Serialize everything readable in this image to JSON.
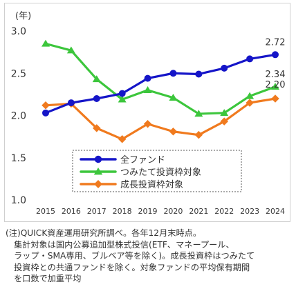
{
  "chart_data": {
    "type": "line",
    "title": "",
    "ylabel": "(年)",
    "xlabel": "",
    "ylim": [
      1.0,
      3.0
    ],
    "yticks": [
      "1.0",
      "1.5",
      "2.0",
      "2.5",
      "3.0"
    ],
    "categories": [
      "2015",
      "2016",
      "2017",
      "2018",
      "2019",
      "2020",
      "2021",
      "2022",
      "2023",
      "2024"
    ],
    "grid": false,
    "legend_position": "bottom-center",
    "series": [
      {
        "name": "全ファンド",
        "color": "#1515c8",
        "marker": "circle",
        "values": [
          2.03,
          2.15,
          2.2,
          2.26,
          2.44,
          2.5,
          2.49,
          2.56,
          2.67,
          2.72
        ],
        "end_label": "2.72"
      },
      {
        "name": "つみたて投資枠対象",
        "color": "#3cc63c",
        "marker": "triangle",
        "values": [
          2.85,
          2.77,
          2.43,
          2.19,
          2.3,
          2.21,
          2.02,
          2.03,
          2.23,
          2.34
        ],
        "end_label": "2.34"
      },
      {
        "name": "成長投資枠対象",
        "color": "#f07a1e",
        "marker": "diamond",
        "values": [
          2.12,
          2.14,
          1.85,
          1.72,
          1.9,
          1.81,
          1.77,
          1.93,
          2.15,
          2.2
        ],
        "end_label": "2.20"
      }
    ]
  },
  "note": {
    "lines": [
      "(注)QUICK資産運用研究所調べ。各年12月末時点。",
      "集計対象は国内公募追加型株式投信(ETF、マネープール、",
      "ラップ・SMA専用、ブルベア等を除く)。成長投資枠はつみたて",
      "投資枠との共通ファンドを除く。対象ファンドの平均保有期間",
      "を口数で加重平均"
    ]
  }
}
